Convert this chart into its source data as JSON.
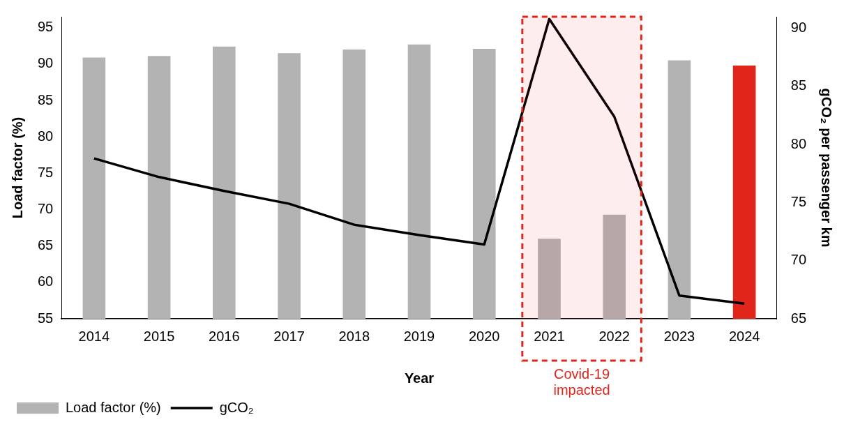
{
  "chart_data": {
    "type": "bar",
    "xlabel": "Year",
    "ylabel": "Load factor (%)",
    "y2label": "gCO₂ per passenger km",
    "categories": [
      "2014",
      "2015",
      "2016",
      "2017",
      "2018",
      "2019",
      "2020",
      "2021",
      "2022",
      "2023",
      "2024"
    ],
    "series": [
      {
        "name": "Load factor (%)",
        "colors": [
          "#b3b3b3",
          "#b3b3b3",
          "#b3b3b3",
          "#b3b3b3",
          "#b3b3b3",
          "#b3b3b3",
          "#b3b3b3",
          "#b3b3b3",
          "#b3b3b3",
          "#b3b3b3",
          "#e1251b"
        ],
        "values": [
          90.9,
          91.1,
          92.4,
          91.5,
          92.0,
          92.7,
          92.1,
          66.0,
          69.3,
          90.5,
          89.8
        ]
      },
      {
        "name": "gCO₂",
        "type": "line",
        "axis": "y2",
        "color": "#000000",
        "values": [
          78.8,
          77.2,
          76.0,
          74.9,
          73.1,
          72.2,
          71.4,
          90.8,
          82.4,
          67.0,
          66.3
        ]
      }
    ],
    "ylim": [
      55,
      96.5
    ],
    "yticks": [
      55,
      60,
      65,
      70,
      75,
      80,
      85,
      90,
      95
    ],
    "y2lim": [
      65,
      91
    ],
    "y2ticks": [
      65,
      70,
      75,
      80,
      85,
      90
    ],
    "bands": [
      {
        "axis": "x",
        "from": "2021",
        "to": "2022",
        "label": "Covid-19 impacted",
        "color": "#e1251b"
      }
    ],
    "grid": false,
    "legend": "bottom left",
    "marker": "none"
  }
}
